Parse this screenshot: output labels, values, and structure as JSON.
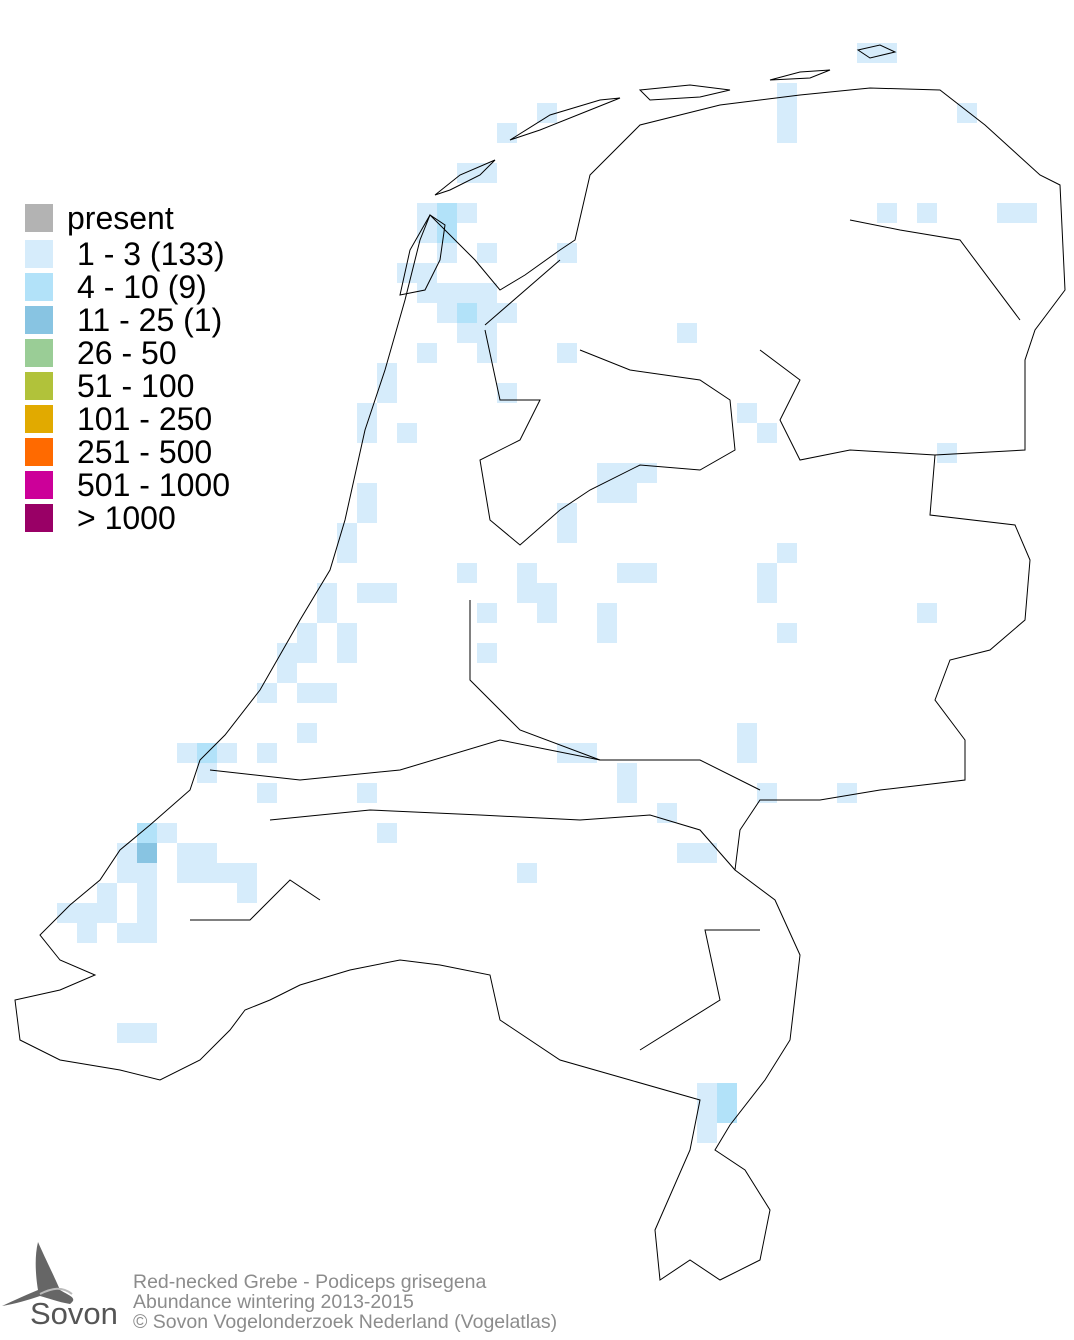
{
  "map": {
    "region": "Netherlands",
    "colors": {
      "outline": "#000000",
      "background": "#ffffff"
    }
  },
  "legend": [
    {
      "label": "present",
      "color": "#b3b3b3"
    },
    {
      "label": "1 - 3 (133)",
      "color": "#d6ecfb"
    },
    {
      "label": "4 - 10 (9)",
      "color": "#b2e2f9"
    },
    {
      "label": "11 - 25 (1)",
      "color": "#88c4e2"
    },
    {
      "label": "26 - 50",
      "color": "#9acd96"
    },
    {
      "label": "51 - 100",
      "color": "#b1c23a"
    },
    {
      "label": "101 - 250",
      "color": "#e1aa00"
    },
    {
      "label": "251 - 500",
      "color": "#ff6a00"
    },
    {
      "label": "501 - 1000",
      "color": "#cc0099"
    },
    {
      "label": "> 1000",
      "color": "#990066"
    }
  ],
  "footer": {
    "line1": "Red-necked Grebe - Podiceps grisegena",
    "line2": "Abundance wintering 2013-2015",
    "line3": "© Sovon Vogelonderzoek Nederland (Vogelatlas)"
  },
  "logo": {
    "text": "Sovon",
    "icon": "swallow-icon"
  }
}
